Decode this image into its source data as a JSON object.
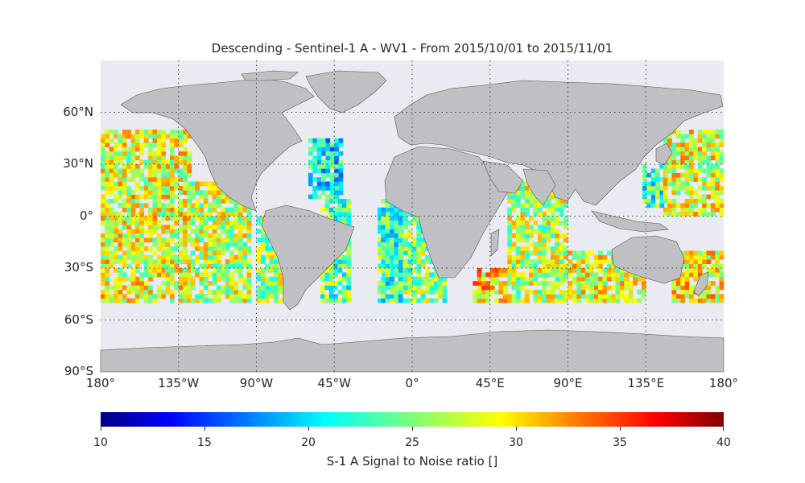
{
  "title": "Descending - Sentinel-1 A - WV1 - From 2015/10/01 to 2015/11/01",
  "map": {
    "lat_labels": [
      {
        "lat": 60,
        "label": "60°N"
      },
      {
        "lat": 30,
        "label": "30°N"
      },
      {
        "lat": 0,
        "label": "0°"
      },
      {
        "lat": -30,
        "label": "30°S"
      },
      {
        "lat": -60,
        "label": "60°S"
      },
      {
        "lat": -90,
        "label": "90°S"
      }
    ],
    "lon_labels": [
      {
        "lon": -180,
        "label": "180°"
      },
      {
        "lon": -135,
        "label": "135°W"
      },
      {
        "lon": -90,
        "label": "90°W"
      },
      {
        "lon": -45,
        "label": "45°W"
      },
      {
        "lon": 0,
        "label": "0°"
      },
      {
        "lon": 45,
        "label": "45°E"
      },
      {
        "lon": 90,
        "label": "90°E"
      },
      {
        "lon": 135,
        "label": "135°E"
      },
      {
        "lon": 180,
        "label": "180°"
      }
    ],
    "extent": {
      "lon": [
        -180,
        180
      ],
      "lat": [
        -90,
        90
      ]
    },
    "colors": {
      "ocean": "#eaeaf2",
      "land": "#bfbfc4",
      "coast": "#555555",
      "grid": "#444444"
    },
    "data_swaths": [
      {
        "lon": [
          -180,
          -128
        ],
        "lat": [
          -50,
          50
        ],
        "snr_mean": 28
      },
      {
        "lon": [
          -128,
          -95
        ],
        "lat": [
          -50,
          18
        ],
        "snr_mean": 27
      },
      {
        "lon": [
          -90,
          -73
        ],
        "lat": [
          -50,
          0
        ],
        "snr_mean": 26
      },
      {
        "lon": [
          -60,
          -42
        ],
        "lat": [
          10,
          45
        ],
        "snr_mean": 21
      },
      {
        "lon": [
          -53,
          -36
        ],
        "lat": [
          -50,
          10
        ],
        "snr_mean": 24
      },
      {
        "lon": [
          -20,
          18
        ],
        "lat": [
          -50,
          5
        ],
        "snr_mean": 25
      },
      {
        "lon": [
          -18,
          -7
        ],
        "lat": [
          -50,
          10
        ],
        "snr_mean": 23
      },
      {
        "lon": [
          35,
          55
        ],
        "lat": [
          -50,
          -30
        ],
        "snr_mean": 30
      },
      {
        "lon": [
          55,
          90
        ],
        "lat": [
          -50,
          20
        ],
        "snr_mean": 27
      },
      {
        "lon": [
          90,
          135
        ],
        "lat": [
          -50,
          -20
        ],
        "snr_mean": 28
      },
      {
        "lon": [
          133,
          145
        ],
        "lat": [
          5,
          30
        ],
        "snr_mean": 23
      },
      {
        "lon": [
          145,
          180
        ],
        "lat": [
          0,
          50
        ],
        "snr_mean": 28
      },
      {
        "lon": [
          150,
          180
        ],
        "lat": [
          -50,
          -22
        ],
        "snr_mean": 29
      }
    ]
  },
  "colorbar": {
    "min": 10,
    "max": 40,
    "ticks": [
      "10",
      "15",
      "20",
      "25",
      "30",
      "35",
      "40"
    ],
    "label": "S-1 A Signal to Noise ratio []",
    "colormap": "jet"
  }
}
